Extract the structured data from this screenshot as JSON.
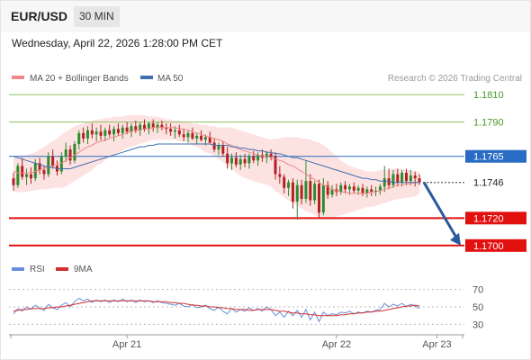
{
  "header": {
    "symbol": "EUR/USD",
    "timeframe": "30 MIN",
    "datetime": "Wednesday, April 22, 2026 1:28:00 PM CET"
  },
  "legend": {
    "ma20_label": "MA 20 + Bollinger Bands",
    "ma50_label": "MA 50",
    "copyright": "Research © 2026 Trading Central",
    "rsi_label": "RSI",
    "rsi_ma_label": "9MA"
  },
  "colors": {
    "ma20": "#f08888",
    "bollinger_fill": "#fde2e2",
    "ma50": "#3f6fb0",
    "candle_up": "#2e8b2e",
    "candle_down": "#b22222",
    "target_level": "#8dc060",
    "pivot_level": "#2a6cc4",
    "support_level": "#e31010",
    "last_price_label": "#ffffff",
    "arrow": "#2a5a9e",
    "rsi": "#6a8fd8",
    "rsi_ma": "#d03030"
  },
  "chart_data": [
    {
      "type": "candlestick",
      "title": "EUR/USD",
      "ylim": [
        1.1692,
        1.1816
      ],
      "levels": [
        {
          "value": 1.181,
          "label": "1.1810",
          "kind": "target"
        },
        {
          "value": 1.179,
          "label": "1.1790",
          "kind": "target"
        },
        {
          "value": 1.1765,
          "label": "1.1765",
          "kind": "pivot"
        },
        {
          "value": 1.1746,
          "label": "1.1746",
          "kind": "last"
        },
        {
          "value": 1.172,
          "label": "1.1720",
          "kind": "support"
        },
        {
          "value": 1.17,
          "label": "1.1700",
          "kind": "support"
        }
      ],
      "x_ticks": [
        {
          "index": 26,
          "label": "Apr 21"
        },
        {
          "index": 74,
          "label": "Apr 22"
        },
        {
          "index": 97,
          "label": "Apr 23"
        }
      ],
      "candles": [
        [
          1.1749,
          1.1753,
          1.174,
          1.1744
        ],
        [
          1.1744,
          1.176,
          1.1742,
          1.1758
        ],
        [
          1.1758,
          1.1764,
          1.1748,
          1.175
        ],
        [
          1.175,
          1.1756,
          1.1744,
          1.1752
        ],
        [
          1.1752,
          1.1757,
          1.1745,
          1.1749
        ],
        [
          1.1749,
          1.1763,
          1.1747,
          1.176
        ],
        [
          1.176,
          1.1764,
          1.1752,
          1.1755
        ],
        [
          1.1755,
          1.1758,
          1.1748,
          1.1752
        ],
        [
          1.1752,
          1.1768,
          1.175,
          1.1765
        ],
        [
          1.1765,
          1.177,
          1.1756,
          1.1758
        ],
        [
          1.1758,
          1.1762,
          1.1751,
          1.1754
        ],
        [
          1.1754,
          1.1768,
          1.1752,
          1.1765
        ],
        [
          1.1765,
          1.1775,
          1.1761,
          1.177
        ],
        [
          1.177,
          1.1773,
          1.1759,
          1.1762
        ],
        [
          1.1762,
          1.1776,
          1.176,
          1.1774
        ],
        [
          1.1774,
          1.1784,
          1.177,
          1.1782
        ],
        [
          1.1782,
          1.1786,
          1.1775,
          1.1778
        ],
        [
          1.1778,
          1.1787,
          1.1774,
          1.1784
        ],
        [
          1.1784,
          1.1789,
          1.1778,
          1.1781
        ],
        [
          1.1781,
          1.1786,
          1.1776,
          1.1783
        ],
        [
          1.1783,
          1.1788,
          1.1777,
          1.178
        ],
        [
          1.178,
          1.1786,
          1.1776,
          1.1784
        ],
        [
          1.1784,
          1.1788,
          1.1779,
          1.1781
        ],
        [
          1.1781,
          1.1787,
          1.1776,
          1.1785
        ],
        [
          1.1785,
          1.1789,
          1.178,
          1.1782
        ],
        [
          1.1782,
          1.1788,
          1.1778,
          1.1786
        ],
        [
          1.1786,
          1.179,
          1.1781,
          1.1783
        ],
        [
          1.1783,
          1.1789,
          1.1779,
          1.1787
        ],
        [
          1.1787,
          1.1791,
          1.1782,
          1.1784
        ],
        [
          1.1784,
          1.179,
          1.178,
          1.1788
        ],
        [
          1.1788,
          1.1792,
          1.1783,
          1.1785
        ],
        [
          1.1785,
          1.179,
          1.1781,
          1.1789
        ],
        [
          1.1789,
          1.1792,
          1.1783,
          1.1786
        ],
        [
          1.1786,
          1.179,
          1.1782,
          1.1788
        ],
        [
          1.1788,
          1.1791,
          1.1784,
          1.1786
        ],
        [
          1.1786,
          1.1789,
          1.1781,
          1.1785
        ],
        [
          1.1785,
          1.1789,
          1.178,
          1.1783
        ],
        [
          1.1783,
          1.1787,
          1.1778,
          1.1784
        ],
        [
          1.1784,
          1.1788,
          1.1779,
          1.1781
        ],
        [
          1.1781,
          1.1785,
          1.1776,
          1.1779
        ],
        [
          1.1779,
          1.1784,
          1.1775,
          1.1782
        ],
        [
          1.1782,
          1.1786,
          1.1777,
          1.1778
        ],
        [
          1.1778,
          1.1782,
          1.1774,
          1.178
        ],
        [
          1.178,
          1.1784,
          1.1776,
          1.1777
        ],
        [
          1.1777,
          1.1781,
          1.1773,
          1.1779
        ],
        [
          1.1779,
          1.1783,
          1.1774,
          1.1775
        ],
        [
          1.1775,
          1.1778,
          1.1768,
          1.177
        ],
        [
          1.177,
          1.1775,
          1.1766,
          1.1773
        ],
        [
          1.1773,
          1.1776,
          1.1765,
          1.1767
        ],
        [
          1.1767,
          1.1772,
          1.1756,
          1.176
        ],
        [
          1.176,
          1.1767,
          1.1755,
          1.1764
        ],
        [
          1.1764,
          1.1768,
          1.1757,
          1.1759
        ],
        [
          1.1759,
          1.1766,
          1.1755,
          1.1763
        ],
        [
          1.1763,
          1.1767,
          1.1757,
          1.176
        ],
        [
          1.176,
          1.1767,
          1.1756,
          1.1765
        ],
        [
          1.1765,
          1.1769,
          1.176,
          1.1762
        ],
        [
          1.1762,
          1.1768,
          1.1758,
          1.1766
        ],
        [
          1.1766,
          1.177,
          1.1761,
          1.1764
        ],
        [
          1.1764,
          1.1769,
          1.176,
          1.1767
        ],
        [
          1.1767,
          1.177,
          1.1762,
          1.1765
        ],
        [
          1.1765,
          1.1768,
          1.1748,
          1.1752
        ],
        [
          1.1752,
          1.1758,
          1.1745,
          1.175
        ],
        [
          1.175,
          1.1752,
          1.1738,
          1.1742
        ],
        [
          1.1742,
          1.1748,
          1.1736,
          1.1746
        ],
        [
          1.1746,
          1.1749,
          1.1727,
          1.1732
        ],
        [
          1.1732,
          1.1748,
          1.1719,
          1.1744
        ],
        [
          1.1744,
          1.1748,
          1.173,
          1.1734
        ],
        [
          1.1734,
          1.1762,
          1.1731,
          1.1747
        ],
        [
          1.1747,
          1.1752,
          1.1729,
          1.1733
        ],
        [
          1.1733,
          1.1747,
          1.173,
          1.1745
        ],
        [
          1.1745,
          1.1748,
          1.172,
          1.1724
        ],
        [
          1.1724,
          1.1749,
          1.1722,
          1.1744
        ],
        [
          1.1744,
          1.1747,
          1.1734,
          1.1737
        ],
        [
          1.1737,
          1.1744,
          1.1735,
          1.1741
        ],
        [
          1.1741,
          1.1745,
          1.1736,
          1.1739
        ],
        [
          1.1739,
          1.1746,
          1.1737,
          1.1744
        ],
        [
          1.1744,
          1.1747,
          1.1738,
          1.1741
        ],
        [
          1.1741,
          1.1745,
          1.1737,
          1.1743
        ],
        [
          1.1743,
          1.1746,
          1.1738,
          1.174
        ],
        [
          1.174,
          1.1744,
          1.1737,
          1.1742
        ],
        [
          1.1742,
          1.1745,
          1.1736,
          1.1738
        ],
        [
          1.1738,
          1.1743,
          1.1735,
          1.1741
        ],
        [
          1.1741,
          1.1744,
          1.1736,
          1.1739
        ],
        [
          1.1739,
          1.1743,
          1.1736,
          1.174
        ],
        [
          1.174,
          1.1745,
          1.1737,
          1.1743
        ],
        [
          1.1743,
          1.1758,
          1.1739,
          1.1749
        ],
        [
          1.1749,
          1.1756,
          1.1741,
          1.1744
        ],
        [
          1.1744,
          1.1755,
          1.1742,
          1.1752
        ],
        [
          1.1752,
          1.1756,
          1.1743,
          1.1746
        ],
        [
          1.1746,
          1.1755,
          1.1743,
          1.1753
        ],
        [
          1.1753,
          1.1756,
          1.1744,
          1.1747
        ],
        [
          1.1747,
          1.1755,
          1.1744,
          1.1751
        ],
        [
          1.1751,
          1.1754,
          1.1743,
          1.1749
        ],
        [
          1.1749,
          1.1752,
          1.1744,
          1.1746
        ]
      ],
      "ma20": [
        1.1754,
        1.1753,
        1.1753,
        1.1753,
        1.1753,
        1.1754,
        1.1755,
        1.1756,
        1.1757,
        1.1758,
        1.1759,
        1.176,
        1.1762,
        1.1764,
        1.1766,
        1.1768,
        1.177,
        1.1772,
        1.1773,
        1.1775,
        1.1776,
        1.1777,
        1.1778,
        1.1779,
        1.178,
        1.1781,
        1.1782,
        1.1783,
        1.1784,
        1.1784,
        1.1785,
        1.1785,
        1.1786,
        1.1786,
        1.1786,
        1.1786,
        1.1786,
        1.1786,
        1.1785,
        1.1785,
        1.1784,
        1.1783,
        1.1782,
        1.1781,
        1.178,
        1.1779,
        1.1778,
        1.1777,
        1.1776,
        1.1774,
        1.1773,
        1.1771,
        1.177,
        1.1769,
        1.1768,
        1.1767,
        1.1766,
        1.1765,
        1.1765,
        1.1764,
        1.1763,
        1.1762,
        1.1761,
        1.1759,
        1.1758,
        1.1756,
        1.1754,
        1.1752,
        1.175,
        1.1748,
        1.1746,
        1.1744,
        1.1743,
        1.1741,
        1.174,
        1.1739,
        1.1739,
        1.1738,
        1.1738,
        1.1738,
        1.1738,
        1.1738,
        1.1739,
        1.1739,
        1.174,
        1.1741,
        1.1742,
        1.1743,
        1.1744,
        1.1744,
        1.1745,
        1.1745,
        1.1746,
        1.1746
      ],
      "bollinger_upper": [
        1.1765,
        1.1765,
        1.1766,
        1.1766,
        1.1767,
        1.1768,
        1.177,
        1.1772,
        1.1774,
        1.1776,
        1.1778,
        1.1781,
        1.1783,
        1.1785,
        1.1787,
        1.1788,
        1.1789,
        1.179,
        1.1791,
        1.1792,
        1.1792,
        1.1793,
        1.1793,
        1.1794,
        1.1794,
        1.1794,
        1.1795,
        1.1795,
        1.1795,
        1.1795,
        1.1795,
        1.1794,
        1.1794,
        1.1794,
        1.1793,
        1.1792,
        1.1792,
        1.1791,
        1.1791,
        1.179,
        1.179,
        1.1789,
        1.1789,
        1.1788,
        1.1788,
        1.1787,
        1.1787,
        1.1786,
        1.1786,
        1.1786,
        1.1786,
        1.1785,
        1.1784,
        1.1783,
        1.1782,
        1.1781,
        1.178,
        1.1779,
        1.1778,
        1.1777,
        1.1778,
        1.1778,
        1.1779,
        1.1779,
        1.1779,
        1.1779,
        1.1778,
        1.1778,
        1.1777,
        1.1776,
        1.1775,
        1.1773,
        1.1771,
        1.1768,
        1.1765,
        1.1762,
        1.176,
        1.1758,
        1.1757,
        1.1756,
        1.1755,
        1.1754,
        1.1754,
        1.1754,
        1.1755,
        1.1755,
        1.1755,
        1.1756,
        1.1756,
        1.1756,
        1.1755,
        1.1755,
        1.1754,
        1.1754
      ],
      "bollinger_lower": [
        1.1739,
        1.1739,
        1.1739,
        1.1739,
        1.174,
        1.174,
        1.1741,
        1.1741,
        1.1741,
        1.1742,
        1.1742,
        1.1742,
        1.1743,
        1.1745,
        1.1747,
        1.1749,
        1.1751,
        1.1753,
        1.1755,
        1.1758,
        1.176,
        1.1762,
        1.1764,
        1.1766,
        1.1768,
        1.1769,
        1.1771,
        1.1772,
        1.1773,
        1.1774,
        1.1775,
        1.1776,
        1.1777,
        1.1777,
        1.1777,
        1.1777,
        1.1777,
        1.1777,
        1.1776,
        1.1776,
        1.1775,
        1.1773,
        1.1772,
        1.177,
        1.1768,
        1.1767,
        1.1765,
        1.1763,
        1.1761,
        1.1758,
        1.1756,
        1.1753,
        1.1751,
        1.1749,
        1.1748,
        1.1747,
        1.1746,
        1.1745,
        1.1744,
        1.1743,
        1.174,
        1.1738,
        1.1735,
        1.1733,
        1.1731,
        1.1729,
        1.1727,
        1.1725,
        1.1724,
        1.1722,
        1.1721,
        1.172,
        1.172,
        1.172,
        1.1721,
        1.1722,
        1.1723,
        1.1724,
        1.1725,
        1.1726,
        1.1727,
        1.1728,
        1.1728,
        1.1729,
        1.173,
        1.1731,
        1.1732,
        1.1733,
        1.1734,
        1.1734,
        1.1735,
        1.1735,
        1.1736,
        1.1737
      ],
      "ma50": [
        1.1765,
        1.1764,
        1.1763,
        1.1762,
        1.1761,
        1.176,
        1.1759,
        1.1758,
        1.1757,
        1.1757,
        1.1756,
        1.1756,
        1.1756,
        1.1756,
        1.1757,
        1.1758,
        1.1759,
        1.176,
        1.1761,
        1.1762,
        1.1763,
        1.1764,
        1.1765,
        1.1766,
        1.1767,
        1.1768,
        1.1769,
        1.177,
        1.1771,
        1.1772,
        1.1772,
        1.1773,
        1.1773,
        1.1774,
        1.1774,
        1.1774,
        1.1774,
        1.1774,
        1.1774,
        1.1774,
        1.1774,
        1.1774,
        1.1774,
        1.1774,
        1.1774,
        1.1774,
        1.1773,
        1.1773,
        1.1773,
        1.1773,
        1.1772,
        1.1772,
        1.1771,
        1.1771,
        1.177,
        1.177,
        1.1769,
        1.1769,
        1.1768,
        1.1768,
        1.1767,
        1.1767,
        1.1766,
        1.1765,
        1.1764,
        1.1764,
        1.1763,
        1.1762,
        1.1761,
        1.176,
        1.1759,
        1.1758,
        1.1757,
        1.1756,
        1.1755,
        1.1754,
        1.1753,
        1.1752,
        1.1751,
        1.175,
        1.1749,
        1.1749,
        1.1748,
        1.1748,
        1.1747,
        1.1747,
        1.1747,
        1.1746,
        1.1746,
        1.1746,
        1.1746,
        1.1746,
        1.1746,
        1.1746
      ],
      "projection": {
        "from": 1.1746,
        "to": 1.17
      }
    },
    {
      "type": "line",
      "title": "RSI",
      "ylim": [
        20,
        80
      ],
      "y_ticks": [
        70,
        50,
        30
      ],
      "series": [
        {
          "name": "RSI",
          "values": [
            42,
            48,
            45,
            50,
            47,
            52,
            49,
            46,
            53,
            49,
            47,
            52,
            55,
            50,
            56,
            60,
            57,
            59,
            55,
            58,
            56,
            58,
            55,
            58,
            56,
            59,
            56,
            58,
            55,
            58,
            56,
            57,
            55,
            57,
            55,
            54,
            53,
            52,
            54,
            51,
            50,
            53,
            49,
            50,
            52,
            48,
            46,
            50,
            45,
            42,
            48,
            44,
            47,
            45,
            49,
            46,
            48,
            45,
            50,
            47,
            40,
            44,
            38,
            45,
            40,
            46,
            38,
            47,
            35,
            44,
            33,
            44,
            40,
            42,
            41,
            44,
            43,
            45,
            42,
            44,
            43,
            45,
            44,
            46,
            47,
            54,
            50,
            53,
            51,
            54,
            50,
            53,
            51,
            48
          ]
        },
        {
          "name": "9MA",
          "values": [
            45,
            46,
            47,
            47,
            48,
            48,
            48,
            48,
            49,
            49,
            50,
            50,
            51,
            52,
            53,
            54,
            55,
            56,
            57,
            57,
            57,
            57,
            57,
            57,
            57,
            57,
            57,
            57,
            57,
            57,
            57,
            57,
            56,
            56,
            56,
            56,
            55,
            55,
            54,
            54,
            53,
            52,
            52,
            51,
            51,
            50,
            50,
            49,
            49,
            48,
            48,
            47,
            47,
            47,
            46,
            46,
            47,
            47,
            47,
            47,
            46,
            45,
            45,
            44,
            43,
            43,
            42,
            42,
            41,
            41,
            40,
            40,
            40,
            40,
            40,
            41,
            41,
            42,
            42,
            43,
            43,
            44,
            44,
            45,
            45,
            46,
            47,
            48,
            49,
            50,
            51,
            51,
            52,
            51
          ]
        }
      ]
    }
  ]
}
